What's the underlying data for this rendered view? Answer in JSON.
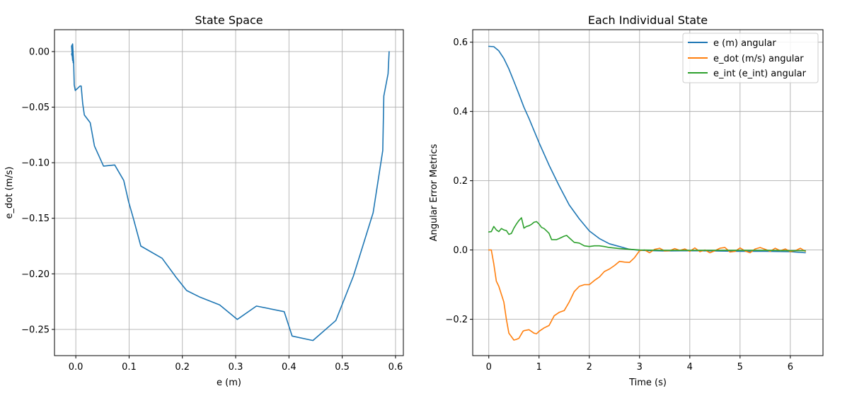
{
  "chart_data": [
    {
      "type": "line",
      "title": "State Space",
      "xlabel": "e (m)",
      "ylabel": "e_dot (m/s)",
      "xlim": [
        -0.04,
        0.6147
      ],
      "ylim": [
        -0.2736,
        0.0197
      ],
      "xticks": [
        0.0,
        0.1,
        0.2,
        0.3,
        0.4,
        0.5,
        0.6
      ],
      "xtick_labels": [
        "0.0",
        "0.1",
        "0.2",
        "0.3",
        "0.4",
        "0.5",
        "0.6"
      ],
      "yticks": [
        0.0,
        -0.05,
        -0.1,
        -0.15,
        -0.2,
        -0.25
      ],
      "ytick_labels": [
        "0.00",
        "−0.05",
        "−0.10",
        "−0.15",
        "−0.20",
        "−0.25"
      ],
      "grid": true,
      "series": [
        {
          "color": "#1f77b4",
          "x": [
            0.588,
            0.586,
            0.578,
            0.576,
            0.558,
            0.521,
            0.488,
            0.445,
            0.406,
            0.391,
            0.339,
            0.303,
            0.27,
            0.233,
            0.208,
            0.188,
            0.162,
            0.122,
            0.108,
            0.099,
            0.09,
            0.073,
            0.052,
            0.035,
            0.027,
            0.016,
            0.013,
            0.01,
            0.008,
            -0.001,
            -0.003,
            -0.004,
            -0.006,
            -0.005,
            -0.007,
            -0.006,
            -0.008,
            -0.005,
            -0.007,
            -0.004,
            -0.008
          ],
          "y": [
            0.0,
            -0.02,
            -0.04,
            -0.089,
            -0.145,
            -0.202,
            -0.242,
            -0.26,
            -0.256,
            -0.234,
            -0.229,
            -0.241,
            -0.228,
            -0.221,
            -0.215,
            -0.203,
            -0.186,
            -0.175,
            -0.15,
            -0.135,
            -0.116,
            -0.102,
            -0.103,
            -0.085,
            -0.064,
            -0.057,
            -0.047,
            -0.031,
            -0.031,
            -0.035,
            -0.03,
            -0.01,
            0.007,
            -0.01,
            0.006,
            -0.008,
            0.005,
            -0.005,
            0.002,
            -0.009,
            -0.002
          ]
        }
      ]
    },
    {
      "type": "line",
      "title": "Each Individual State",
      "xlabel": "Time (s)",
      "ylabel": "Angular Error Metrics",
      "xlim": [
        -0.32,
        6.65
      ],
      "ylim": [
        -0.305,
        0.636
      ],
      "xticks": [
        0,
        1,
        2,
        3,
        4,
        5,
        6
      ],
      "xtick_labels": [
        "0",
        "1",
        "2",
        "3",
        "4",
        "5",
        "6"
      ],
      "yticks": [
        0.6,
        0.4,
        0.2,
        0.0,
        -0.2
      ],
      "ytick_labels": [
        "0.6",
        "0.4",
        "0.2",
        "0.0",
        "−0.2"
      ],
      "grid": true,
      "legend_position": "top-right",
      "series": [
        {
          "name": "e (m) angular",
          "color": "#1f77b4",
          "x": [
            0,
            0.1,
            0.2,
            0.3,
            0.4,
            0.5,
            0.6,
            0.7,
            0.8,
            0.9,
            1.0,
            1.2,
            1.4,
            1.6,
            1.8,
            2.0,
            2.2,
            2.4,
            2.6,
            2.8,
            3.0,
            3.5,
            4.0,
            4.5,
            5.0,
            5.5,
            6.0,
            6.3
          ],
          "y": [
            0.588,
            0.587,
            0.575,
            0.553,
            0.523,
            0.487,
            0.45,
            0.412,
            0.38,
            0.345,
            0.31,
            0.245,
            0.185,
            0.13,
            0.09,
            0.055,
            0.033,
            0.018,
            0.01,
            0.002,
            -0.001,
            -0.003,
            -0.002,
            -0.003,
            -0.004,
            -0.004,
            -0.005,
            -0.008
          ]
        },
        {
          "name": "e_dot (m/s) angular",
          "color": "#ff7f0e",
          "x": [
            0,
            0.05,
            0.1,
            0.15,
            0.2,
            0.3,
            0.35,
            0.4,
            0.5,
            0.55,
            0.6,
            0.68,
            0.7,
            0.8,
            0.9,
            0.95,
            1.0,
            1.1,
            1.2,
            1.3,
            1.4,
            1.5,
            1.6,
            1.7,
            1.8,
            1.9,
            2.0,
            2.1,
            2.2,
            2.3,
            2.4,
            2.5,
            2.6,
            2.7,
            2.8,
            2.9,
            3.0,
            3.1,
            3.2,
            3.3,
            3.4,
            3.5,
            3.6,
            3.7,
            3.8,
            3.9,
            4.0,
            4.1,
            4.2,
            4.3,
            4.4,
            4.5,
            4.6,
            4.7,
            4.8,
            4.9,
            5.0,
            5.1,
            5.2,
            5.3,
            5.4,
            5.5,
            5.6,
            5.7,
            5.8,
            5.9,
            6.0,
            6.1,
            6.2,
            6.3
          ],
          "y": [
            0.0,
            0.0,
            -0.04,
            -0.09,
            -0.105,
            -0.15,
            -0.2,
            -0.24,
            -0.26,
            -0.258,
            -0.255,
            -0.235,
            -0.233,
            -0.23,
            -0.24,
            -0.242,
            -0.235,
            -0.225,
            -0.218,
            -0.19,
            -0.18,
            -0.175,
            -0.15,
            -0.12,
            -0.105,
            -0.1,
            -0.1,
            -0.088,
            -0.078,
            -0.062,
            -0.055,
            -0.045,
            -0.033,
            -0.035,
            -0.036,
            -0.022,
            -0.002,
            0.0,
            -0.008,
            0.002,
            0.005,
            -0.003,
            -0.002,
            0.004,
            -0.001,
            0.003,
            -0.004,
            0.006,
            -0.005,
            0.0,
            -0.008,
            -0.002,
            0.005,
            0.007,
            -0.006,
            -0.004,
            0.006,
            -0.003,
            -0.008,
            0.003,
            0.007,
            0.002,
            -0.004,
            0.005,
            -0.002,
            0.003,
            -0.005,
            -0.002,
            0.005,
            -0.004
          ]
        },
        {
          "name": "e_int (e_int) angular",
          "color": "#2ca02c",
          "x": [
            0,
            0.05,
            0.1,
            0.15,
            0.2,
            0.25,
            0.3,
            0.35,
            0.4,
            0.45,
            0.5,
            0.55,
            0.6,
            0.65,
            0.7,
            0.75,
            0.8,
            0.85,
            0.9,
            0.95,
            1.0,
            1.05,
            1.1,
            1.15,
            1.2,
            1.25,
            1.3,
            1.35,
            1.4,
            1.5,
            1.55,
            1.6,
            1.7,
            1.8,
            1.9,
            2.0,
            2.1,
            2.2,
            2.3,
            2.4,
            2.6,
            2.8,
            3.0,
            3.5,
            4.0,
            4.5,
            5.0,
            5.5,
            6.0,
            6.3
          ],
          "y": [
            0.052,
            0.053,
            0.068,
            0.058,
            0.053,
            0.062,
            0.058,
            0.056,
            0.045,
            0.048,
            0.063,
            0.075,
            0.085,
            0.093,
            0.063,
            0.068,
            0.07,
            0.074,
            0.08,
            0.082,
            0.075,
            0.065,
            0.062,
            0.055,
            0.048,
            0.03,
            0.03,
            0.03,
            0.033,
            0.04,
            0.042,
            0.035,
            0.022,
            0.02,
            0.012,
            0.01,
            0.012,
            0.012,
            0.01,
            0.007,
            0.004,
            0.002,
            0.0,
            -0.001,
            -0.001,
            -0.001,
            -0.001,
            -0.001,
            -0.002,
            -0.002
          ]
        }
      ]
    }
  ]
}
